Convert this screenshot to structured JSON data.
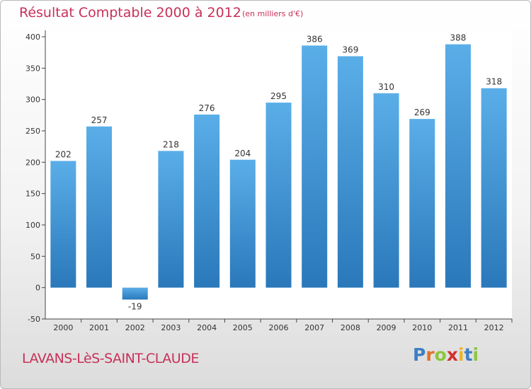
{
  "chart_data": {
    "type": "bar",
    "title": "Résultat Comptable 2000 à 2012",
    "subtitle": "(en milliers d'€)",
    "xlabel": "",
    "ylabel": "",
    "categories": [
      "2000",
      "2001",
      "2002",
      "2003",
      "2004",
      "2005",
      "2006",
      "2007",
      "2008",
      "2009",
      "2010",
      "2011",
      "2012"
    ],
    "values": [
      202,
      257,
      -19,
      218,
      276,
      204,
      295,
      386,
      369,
      310,
      269,
      388,
      318
    ],
    "ylim": [
      -50,
      400
    ],
    "yticks": [
      -50,
      0,
      50,
      100,
      150,
      200,
      250,
      300,
      350,
      400
    ],
    "grid": false,
    "bar_color_top": "#5aaee8",
    "bar_color_bottom": "#2a78ba"
  },
  "location": "LAVANS-LèS-SAINT-CLAUDE",
  "brand": {
    "letters": [
      "P",
      "r",
      "o",
      "x",
      "i",
      "t",
      "i"
    ],
    "colors": [
      "#3e7fc4",
      "#e0722a",
      "#8cc63f",
      "#d22f2f",
      "#e9b62b",
      "#3e7fc4",
      "#8cc63f"
    ]
  }
}
